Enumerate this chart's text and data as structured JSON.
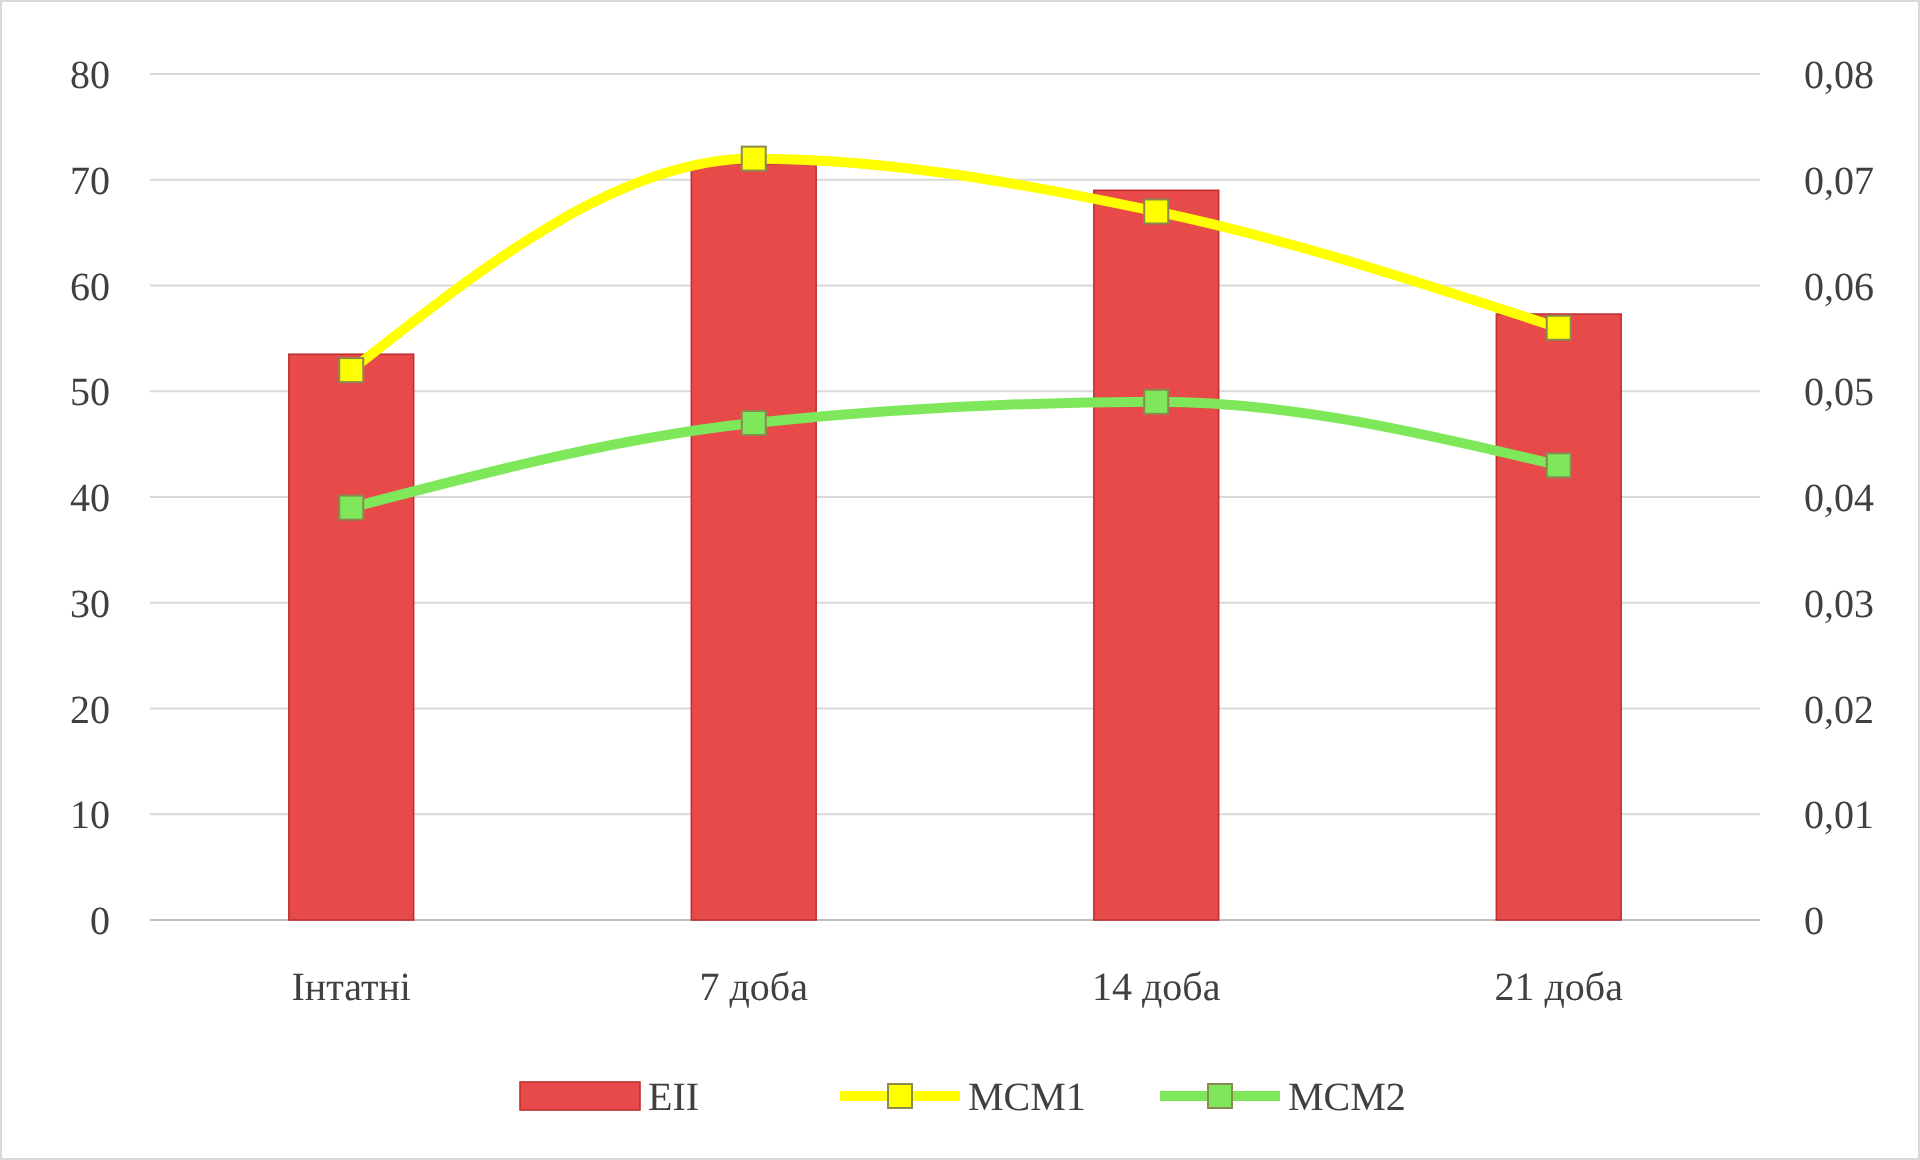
{
  "chart_data": {
    "type": "bar",
    "categories": [
      "Інтатні",
      "7 доба",
      "14 доба",
      "21 доба"
    ],
    "series": [
      {
        "name": "ЕІІ",
        "color": "#e84a4a",
        "values": [
          53.5,
          71.5,
          69,
          57.3
        ]
      },
      {
        "name": "МСМ1",
        "type": "line",
        "axis": "y2",
        "color": "#ffff00",
        "values": [
          0.052,
          0.072,
          0.067,
          0.056
        ]
      },
      {
        "name": "МСМ2",
        "type": "line",
        "axis": "y2",
        "color": "#7ee85a",
        "values": [
          0.039,
          0.047,
          0.049,
          0.043
        ]
      }
    ],
    "ylim": [
      0,
      80
    ],
    "yticks": [
      0,
      10,
      20,
      30,
      40,
      50,
      60,
      70,
      80
    ],
    "y2lim": [
      0,
      0.08
    ],
    "y2ticks": [
      0,
      {
        "value": 0.01,
        "label": "0,01"
      },
      {
        "value": 0.02,
        "label": "0,02"
      },
      {
        "value": 0.03,
        "label": "0,03"
      },
      {
        "value": 0.04,
        "label": "0,04"
      },
      {
        "value": 0.05,
        "label": "0,05"
      },
      {
        "value": 0.06,
        "label": "0,06"
      },
      {
        "value": 0.07,
        "label": "0,07"
      },
      {
        "value": 0.08,
        "label": "0,08"
      }
    ],
    "grid": "y",
    "legend": "bottom",
    "marker": "square"
  }
}
